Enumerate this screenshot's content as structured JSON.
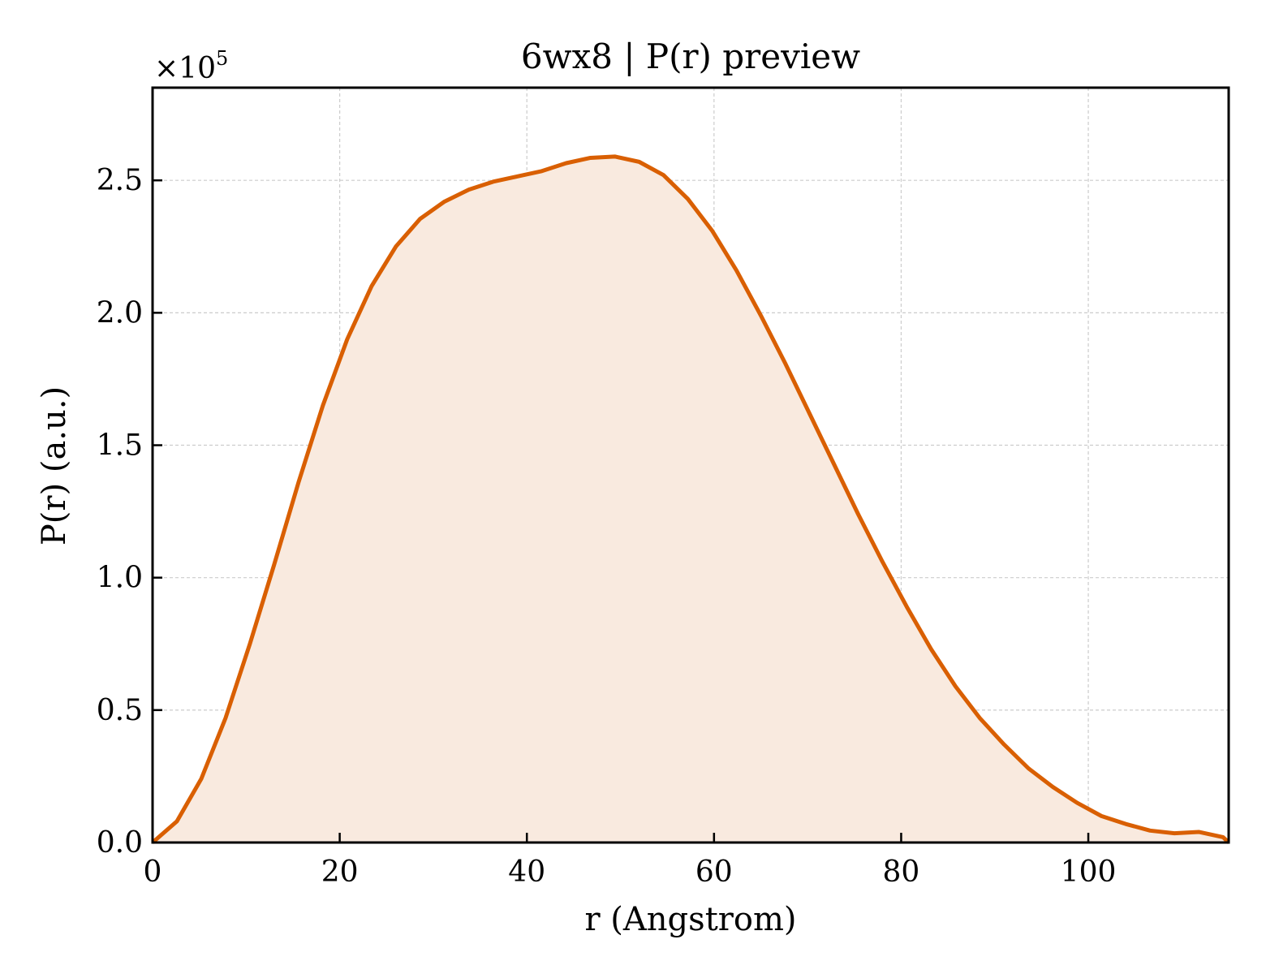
{
  "chart_data": {
    "type": "area",
    "title": "6wx8 | P(r) preview",
    "xlabel": "r (Angstrom)",
    "ylabel": "P(r) (a.u.)",
    "y_offset_text": "×10",
    "y_offset_exponent": "5",
    "xlim": [
      0,
      115
    ],
    "ylim": [
      0,
      2.85
    ],
    "y_scale_factor": 100000,
    "x_ticks": [
      0,
      20,
      40,
      60,
      80,
      100
    ],
    "x_tick_labels": [
      "0",
      "20",
      "40",
      "60",
      "80",
      "100"
    ],
    "y_ticks": [
      0.0,
      0.5,
      1.0,
      1.5,
      2.0,
      2.5
    ],
    "y_tick_labels": [
      "0.0",
      "0.5",
      "1.0",
      "1.5",
      "2.0",
      "2.5"
    ],
    "grid": true,
    "line_color": "#d95f02",
    "fill_color": "#f9eadf",
    "series": [
      {
        "x": [
          0,
          2.6,
          5.2,
          7.8,
          10.4,
          13.0,
          15.6,
          18.2,
          20.8,
          23.4,
          26.0,
          28.6,
          31.2,
          33.8,
          36.4,
          39.0,
          41.6,
          44.2,
          46.8,
          49.4,
          52.0,
          54.6,
          57.2,
          59.8,
          62.4,
          65.0,
          67.6,
          70.2,
          72.8,
          75.4,
          78.0,
          80.6,
          83.2,
          85.8,
          88.4,
          91.0,
          93.6,
          96.2,
          98.8,
          101.4,
          104.0,
          106.6,
          109.2,
          111.8,
          114.4,
          115.0
        ],
        "y": [
          0.0,
          0.08,
          0.24,
          0.47,
          0.75,
          1.05,
          1.36,
          1.65,
          1.9,
          2.1,
          2.25,
          2.355,
          2.42,
          2.465,
          2.495,
          2.515,
          2.535,
          2.565,
          2.585,
          2.59,
          2.57,
          2.52,
          2.43,
          2.31,
          2.16,
          1.99,
          1.81,
          1.62,
          1.43,
          1.24,
          1.06,
          0.89,
          0.73,
          0.59,
          0.47,
          0.37,
          0.28,
          0.21,
          0.15,
          0.1,
          0.07,
          0.045,
          0.035,
          0.04,
          0.02,
          0.0
        ]
      }
    ]
  }
}
